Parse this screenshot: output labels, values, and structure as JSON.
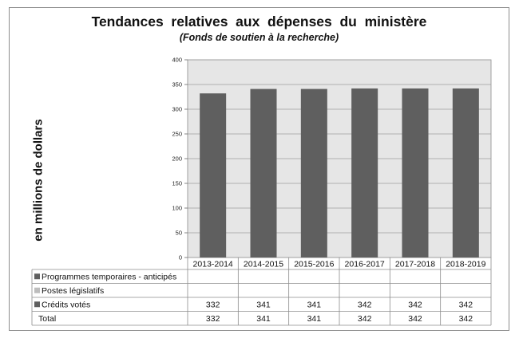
{
  "chart_data": {
    "type": "bar",
    "title": "Tendances  relatives  aux  dépenses  du  ministère",
    "subtitle": "(Fonds de soutien à la recherche)",
    "ylabel": "en millions de dollars",
    "xlabel": "",
    "categories": [
      "2013-2014",
      "2014-2015",
      "2015-2016",
      "2016-2017",
      "2017-2018",
      "2018-2019"
    ],
    "ylim": [
      0,
      400
    ],
    "yticks": [
      0,
      50,
      100,
      150,
      200,
      250,
      300,
      350,
      400
    ],
    "grid": true,
    "series": [
      {
        "name": "Programmes temporaires - anticipés",
        "values": [
          null,
          null,
          null,
          null,
          null,
          null
        ],
        "color": "#5f5f5f"
      },
      {
        "name": "Postes législatifs",
        "values": [
          null,
          null,
          null,
          null,
          null,
          null
        ],
        "color": "#bdbdbd"
      },
      {
        "name": "Crédits votés",
        "values": [
          332,
          341,
          341,
          342,
          342,
          342
        ],
        "color": "#5f5f5f"
      }
    ],
    "table_rows": [
      {
        "label": "Programmes temporaires - anticipés",
        "marker_color": "#5f5f5f",
        "values": [
          "",
          "",
          "",
          "",
          "",
          ""
        ]
      },
      {
        "label": "Postes législatifs",
        "marker_color": "#bdbdbd",
        "values": [
          "",
          "",
          "",
          "",
          "",
          ""
        ]
      },
      {
        "label": "Crédits votés",
        "marker_color": "#5f5f5f",
        "values": [
          "332",
          "341",
          "341",
          "342",
          "342",
          "342"
        ]
      },
      {
        "label": "Total",
        "marker_color": "",
        "values": [
          "332",
          "341",
          "341",
          "342",
          "342",
          "342"
        ]
      }
    ],
    "colors": {
      "plot_background": "#e6e6e6",
      "bar": "#5f5f5f",
      "grid": "#9e9e9e"
    }
  }
}
